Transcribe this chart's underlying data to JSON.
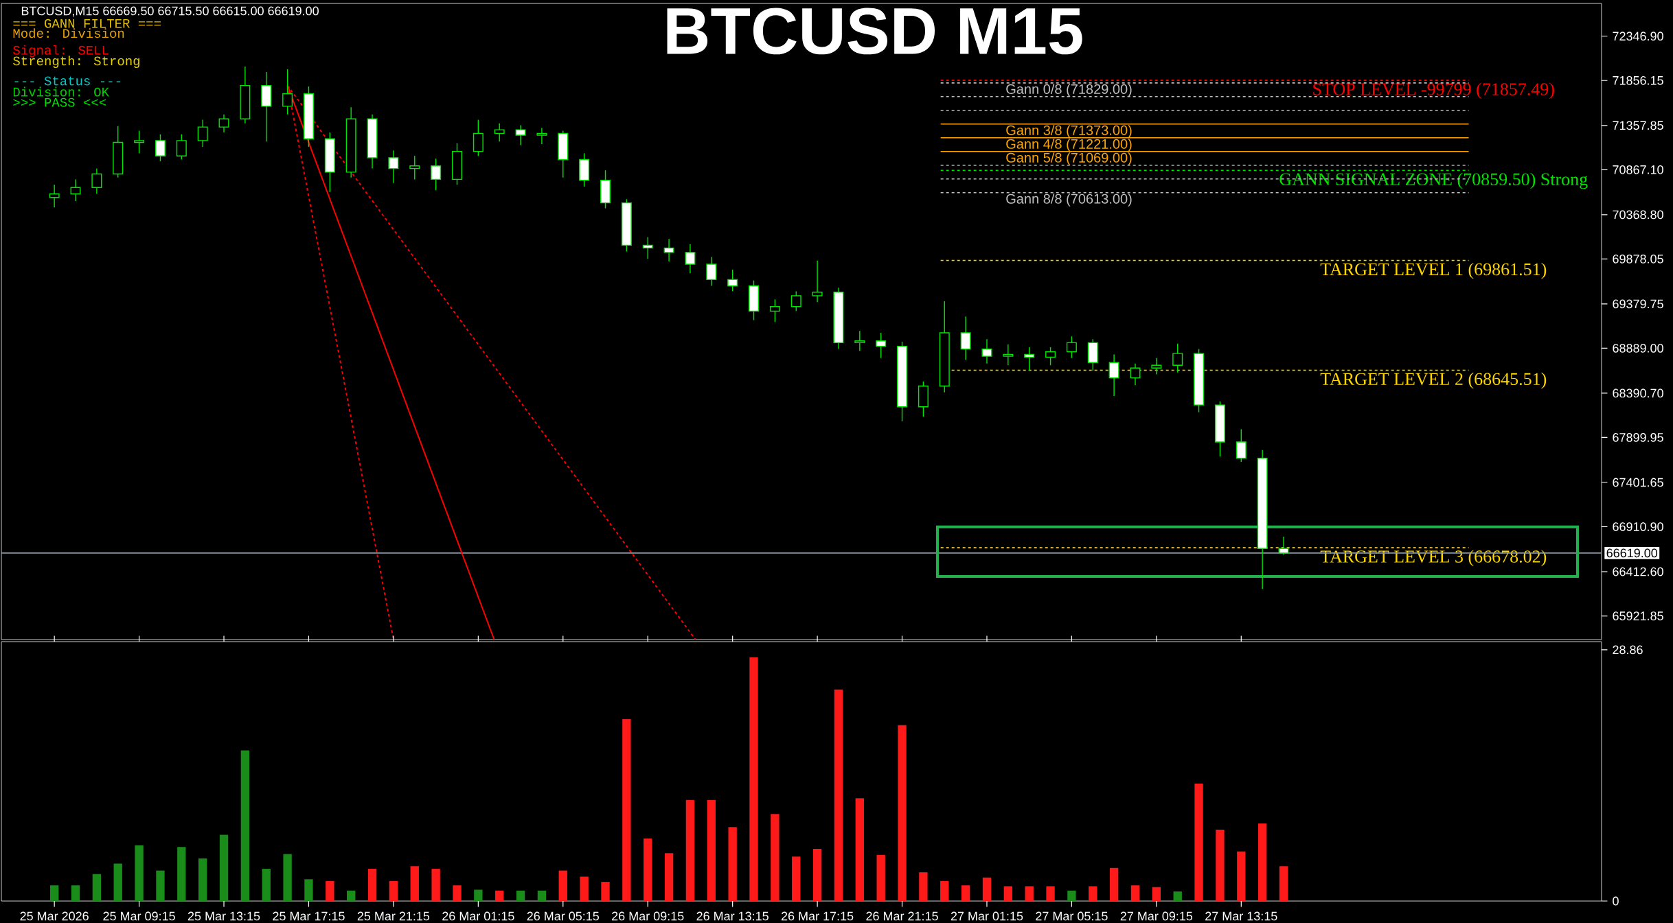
{
  "chart_data": [
    {
      "type": "candlestick",
      "title": "BTCUSD M15",
      "color": "#00e600",
      "x": [
        "2026-03-25T05:15",
        "2026-03-25T06:15",
        "2026-03-25T07:15",
        "2026-03-25T08:15",
        "2026-03-25T09:15",
        "2026-03-25T10:15",
        "2026-03-25T11:15",
        "2026-03-25T12:15",
        "2026-03-25T13:15",
        "2026-03-25T14:15",
        "2026-03-25T15:15",
        "2026-03-25T16:15",
        "2026-03-25T17:15",
        "2026-03-25T18:15",
        "2026-03-25T19:15",
        "2026-03-25T20:15",
        "2026-03-25T21:15",
        "2026-03-25T22:15",
        "2026-03-25T23:15",
        "2026-03-26T00:15",
        "2026-03-26T01:15",
        "2026-03-26T02:15",
        "2026-03-26T03:15",
        "2026-03-26T04:15",
        "2026-03-26T05:15",
        "2026-03-26T06:15",
        "2026-03-26T07:15",
        "2026-03-26T08:15",
        "2026-03-26T09:15",
        "2026-03-26T10:15",
        "2026-03-26T11:15",
        "2026-03-26T12:15",
        "2026-03-26T13:15",
        "2026-03-26T14:15",
        "2026-03-26T15:15",
        "2026-03-26T16:15",
        "2026-03-26T17:15",
        "2026-03-26T18:15",
        "2026-03-26T19:15",
        "2026-03-26T20:15",
        "2026-03-26T21:15",
        "2026-03-26T22:15",
        "2026-03-26T23:15",
        "2026-03-27T00:15",
        "2026-03-27T01:15",
        "2026-03-27T02:15",
        "2026-03-27T03:15",
        "2026-03-27T04:15",
        "2026-03-27T05:15",
        "2026-03-27T06:15",
        "2026-03-27T07:15",
        "2026-03-27T08:15",
        "2026-03-27T09:15",
        "2026-03-27T10:15",
        "2026-03-27T11:15",
        "2026-03-27T12:15",
        "2026-03-27T13:15",
        "2026-03-27T14:15",
        "2026-03-27T15:15"
      ],
      "ohlc": [
        [
          70560,
          70700,
          70450,
          70600
        ],
        [
          70600,
          70760,
          70520,
          70670
        ],
        [
          70670,
          70880,
          70600,
          70820
        ],
        [
          70820,
          71350,
          70780,
          71170
        ],
        [
          71170,
          71300,
          71050,
          71190
        ],
        [
          71190,
          71260,
          70960,
          71020
        ],
        [
          71020,
          71260,
          70980,
          71190
        ],
        [
          71190,
          71420,
          71120,
          71340
        ],
        [
          71340,
          71480,
          71280,
          71430
        ],
        [
          71430,
          72010,
          71380,
          71800
        ],
        [
          71800,
          71950,
          71180,
          71570
        ],
        [
          71570,
          71980,
          71480,
          71710
        ],
        [
          71710,
          71790,
          71120,
          71210
        ],
        [
          71210,
          71280,
          70620,
          70840
        ],
        [
          70840,
          71560,
          70780,
          71430
        ],
        [
          71430,
          71480,
          70880,
          71000
        ],
        [
          71000,
          71080,
          70720,
          70880
        ],
        [
          70880,
          71020,
          70760,
          70910
        ],
        [
          70910,
          70990,
          70640,
          70760
        ],
        [
          70760,
          71160,
          70700,
          71070
        ],
        [
          71070,
          71420,
          71020,
          71270
        ],
        [
          71270,
          71380,
          71180,
          71310
        ],
        [
          71310,
          71360,
          71140,
          71250
        ],
        [
          71250,
          71330,
          71150,
          71270
        ],
        [
          71270,
          71300,
          70780,
          70980
        ],
        [
          70980,
          71050,
          70680,
          70750
        ],
        [
          70750,
          70860,
          70440,
          70500
        ],
        [
          70500,
          70540,
          69960,
          70030
        ],
        [
          70030,
          70120,
          69880,
          70000
        ],
        [
          70000,
          70100,
          69850,
          69950
        ],
        [
          69950,
          70040,
          69720,
          69820
        ],
        [
          69820,
          69900,
          69580,
          69650
        ],
        [
          69650,
          69760,
          69520,
          69580
        ],
        [
          69580,
          69640,
          69200,
          69300
        ],
        [
          69300,
          69430,
          69180,
          69350
        ],
        [
          69350,
          69520,
          69300,
          69470
        ],
        [
          69470,
          69860,
          69400,
          69510
        ],
        [
          69510,
          69560,
          68880,
          68950
        ],
        [
          68950,
          69080,
          68860,
          68970
        ],
        [
          68970,
          69060,
          68780,
          68910
        ],
        [
          68910,
          68960,
          68080,
          68240
        ],
        [
          68240,
          68520,
          68130,
          68470
        ],
        [
          68470,
          69410,
          68400,
          69060
        ],
        [
          69060,
          69240,
          68760,
          68880
        ],
        [
          68880,
          68990,
          68720,
          68800
        ],
        [
          68800,
          68930,
          68700,
          68820
        ],
        [
          68820,
          68900,
          68640,
          68790
        ],
        [
          68790,
          68900,
          68700,
          68850
        ],
        [
          68850,
          69020,
          68780,
          68950
        ],
        [
          68950,
          68990,
          68640,
          68730
        ],
        [
          68730,
          68820,
          68360,
          68560
        ],
        [
          68560,
          68720,
          68480,
          68670
        ],
        [
          68670,
          68780,
          68600,
          68700
        ],
        [
          68700,
          68940,
          68620,
          68830
        ],
        [
          68830,
          68880,
          68180,
          68260
        ],
        [
          68260,
          68300,
          67690,
          67850
        ],
        [
          67850,
          67990,
          67630,
          67670
        ],
        [
          67670,
          67760,
          66220,
          66670
        ],
        [
          66670,
          66800,
          66600,
          66619
        ]
      ],
      "series": [
        {
          "type": "line",
          "color": "#ff0000",
          "line_style": "dashed",
          "x": [
            "2026-03-25T16:15",
            "2026-03-25T21:15"
          ],
          "values": [
            71800,
            65660
          ]
        },
        {
          "type": "line",
          "color": "#ff0000",
          "line_style": "solid",
          "x": [
            "2026-03-25T16:15",
            "2026-03-26T02:00"
          ],
          "values": [
            71800,
            65660
          ]
        },
        {
          "type": "line",
          "color": "#ff0000",
          "line_style": "dashed",
          "x": [
            "2026-03-25T16:15",
            "2026-03-26T11:30"
          ],
          "values": [
            71800,
            65660
          ]
        }
      ],
      "xlim": [
        "2026-03-25T02:45",
        "2026-03-28T06:15"
      ],
      "ylim": [
        65660,
        72710
      ],
      "yticks": [
        {
          "value": 72346.9,
          "label": "72346.90"
        },
        {
          "value": 71856.15,
          "label": "71856.15"
        },
        {
          "value": 71357.85,
          "label": "71357.85"
        },
        {
          "value": 70867.1,
          "label": "70867.10"
        },
        {
          "value": 70368.8,
          "label": "70368.80"
        },
        {
          "value": 69878.05,
          "label": "69878.05"
        },
        {
          "value": 69379.75,
          "label": "69379.75"
        },
        {
          "value": 68889,
          "label": "68889.00"
        },
        {
          "value": 68390.7,
          "label": "68390.70"
        },
        {
          "value": 67899.95,
          "label": "67899.95"
        },
        {
          "value": 67401.65,
          "label": "67401.65"
        },
        {
          "value": 66910.9,
          "label": "66910.90"
        },
        {
          "value": 66412.6,
          "label": "66412.60"
        },
        {
          "value": 65921.85,
          "label": "65921.85"
        }
      ],
      "tick_labels": "y",
      "ref_lines": [
        {
          "axis": "y",
          "value": 71857.49,
          "label": "STOP LEVEL -99799 (71857.49)",
          "color": "#ff0000",
          "line_style": "dashed"
        },
        {
          "axis": "y",
          "value": 71829,
          "label": "Gann 0/8 (71829.00)",
          "color": "#c0c0c0",
          "line_style": "dashed"
        },
        {
          "axis": "y",
          "value": 71677,
          "color": "#c0c0c0",
          "line_style": "dashed"
        },
        {
          "axis": "y",
          "value": 71525,
          "color": "#c0c0c0",
          "line_style": "dashed"
        },
        {
          "axis": "y",
          "value": 71373,
          "label": "Gann 3/8 (71373.00)",
          "color": "#ffa500",
          "line_style": "solid"
        },
        {
          "axis": "y",
          "value": 71221,
          "label": "Gann 4/8 (71221.00)",
          "color": "#ffa500",
          "line_style": "solid"
        },
        {
          "axis": "y",
          "value": 71069,
          "label": "Gann 5/8 (71069.00)",
          "color": "#ffa500",
          "line_style": "solid"
        },
        {
          "axis": "y",
          "value": 70917,
          "color": "#c0c0c0",
          "line_style": "dashed"
        },
        {
          "axis": "y",
          "value": 70859.5,
          "label": "GANN SIGNAL ZONE (70859.50) Strong",
          "color": "#00e600",
          "line_style": "dashed"
        },
        {
          "axis": "y",
          "value": 70765,
          "color": "#c0c0c0",
          "line_style": "dashed"
        },
        {
          "axis": "y",
          "value": 70613,
          "label": "Gann 8/8 (70613.00)",
          "color": "#c0c0c0",
          "line_style": "dashed"
        },
        {
          "axis": "y",
          "value": 69861.51,
          "label": "TARGET LEVEL 1 (69861.51)",
          "color": "#ffd700",
          "line_style": "dashed"
        },
        {
          "axis": "y",
          "value": 68645.51,
          "label": "TARGET LEVEL 2 (68645.51)",
          "color": "#ffd700",
          "line_style": "dashed"
        },
        {
          "axis": "y",
          "value": 66678.02,
          "label": "TARGET LEVEL 3 (66678.02)",
          "color": "#ffd700",
          "line_style": "dashed"
        },
        {
          "axis": "y",
          "value": 66619,
          "label": "66619.00",
          "color": "#8a9bb0",
          "line_style": "solid"
        }
      ],
      "annotations": [
        "BTCUSD,M15  66669.50 66715.50 66615.00 66619.00",
        "=== GANN FILTER ===",
        "Mode: Division",
        "Signal: SELL",
        "Strength: Strong",
        "--- Status ---",
        "Division: OK",
        ">>> PASS <<<"
      ]
    },
    {
      "type": "bar",
      "x": [
        "2026-03-25T05:15",
        "2026-03-25T06:15",
        "2026-03-25T07:15",
        "2026-03-25T08:15",
        "2026-03-25T09:15",
        "2026-03-25T10:15",
        "2026-03-25T11:15",
        "2026-03-25T12:15",
        "2026-03-25T13:15",
        "2026-03-25T14:15",
        "2026-03-25T15:15",
        "2026-03-25T16:15",
        "2026-03-25T17:15",
        "2026-03-25T18:15",
        "2026-03-25T19:15",
        "2026-03-25T20:15",
        "2026-03-25T21:15",
        "2026-03-25T22:15",
        "2026-03-25T23:15",
        "2026-03-26T00:15",
        "2026-03-26T01:15",
        "2026-03-26T02:15",
        "2026-03-26T03:15",
        "2026-03-26T04:15",
        "2026-03-26T05:15",
        "2026-03-26T06:15",
        "2026-03-26T07:15",
        "2026-03-26T08:15",
        "2026-03-26T09:15",
        "2026-03-26T10:15",
        "2026-03-26T11:15",
        "2026-03-26T12:15",
        "2026-03-26T13:15",
        "2026-03-26T14:15",
        "2026-03-26T15:15",
        "2026-03-26T16:15",
        "2026-03-26T17:15",
        "2026-03-26T18:15",
        "2026-03-26T19:15",
        "2026-03-26T20:15",
        "2026-03-26T21:15",
        "2026-03-26T22:15",
        "2026-03-26T23:15",
        "2026-03-27T00:15",
        "2026-03-27T01:15",
        "2026-03-27T02:15",
        "2026-03-27T03:15",
        "2026-03-27T04:15",
        "2026-03-27T05:15",
        "2026-03-27T06:15",
        "2026-03-27T07:15",
        "2026-03-27T08:15",
        "2026-03-27T09:15",
        "2026-03-27T10:15",
        "2026-03-27T11:15",
        "2026-03-27T12:15",
        "2026-03-27T13:15",
        "2026-03-27T14:15",
        "2026-03-27T15:15"
      ],
      "values": [
        1.8,
        1.8,
        3.1,
        4.3,
        6.4,
        3.5,
        6.2,
        4.9,
        7.6,
        17.3,
        3.7,
        5.4,
        2.5,
        2.3,
        1.2,
        3.7,
        2.3,
        4.0,
        3.7,
        1.8,
        1.3,
        1.2,
        1.2,
        1.2,
        3.5,
        2.8,
        2.2,
        20.9,
        7.2,
        5.5,
        11.6,
        11.6,
        8.5,
        28.0,
        10.0,
        5.1,
        6.0,
        24.3,
        11.8,
        5.3,
        20.2,
        3.3,
        2.3,
        1.8,
        2.7,
        1.7,
        1.7,
        1.7,
        1.2,
        1.7,
        3.8,
        1.8,
        1.6,
        1.1,
        13.5,
        8.2,
        5.7,
        8.9,
        4.0
      ],
      "colors": [
        "#1a8c1a",
        "#1a8c1a",
        "#1a8c1a",
        "#1a8c1a",
        "#1a8c1a",
        "#1a8c1a",
        "#1a8c1a",
        "#1a8c1a",
        "#1a8c1a",
        "#1a8c1a",
        "#1a8c1a",
        "#1a8c1a",
        "#1a8c1a",
        "#ff1a1a",
        "#1a8c1a",
        "#ff1a1a",
        "#ff1a1a",
        "#ff1a1a",
        "#ff1a1a",
        "#ff1a1a",
        "#1a8c1a",
        "#ff1a1a",
        "#1a8c1a",
        "#1a8c1a",
        "#ff1a1a",
        "#ff1a1a",
        "#ff1a1a",
        "#ff1a1a",
        "#ff1a1a",
        "#ff1a1a",
        "#ff1a1a",
        "#ff1a1a",
        "#ff1a1a",
        "#ff1a1a",
        "#ff1a1a",
        "#ff1a1a",
        "#ff1a1a",
        "#ff1a1a",
        "#ff1a1a",
        "#ff1a1a",
        "#ff1a1a",
        "#ff1a1a",
        "#ff1a1a",
        "#ff1a1a",
        "#ff1a1a",
        "#ff1a1a",
        "#ff1a1a",
        "#ff1a1a",
        "#1a8c1a",
        "#ff1a1a",
        "#ff1a1a",
        "#ff1a1a",
        "#ff1a1a",
        "#1a8c1a",
        "#ff1a1a",
        "#ff1a1a",
        "#ff1a1a",
        "#ff1a1a",
        "#ff1a1a"
      ],
      "xlim": [
        "2026-03-25T02:45",
        "2026-03-28T06:15"
      ],
      "ylim": [
        0,
        29.8
      ],
      "xticks": [
        {
          "value": "2026-03-25T05:15",
          "label": "25 Mar 2026"
        },
        {
          "value": "2026-03-25T09:15",
          "label": "25 Mar 09:15"
        },
        {
          "value": "2026-03-25T13:15",
          "label": "25 Mar 13:15"
        },
        {
          "value": "2026-03-25T17:15",
          "label": "25 Mar 17:15"
        },
        {
          "value": "2026-03-25T21:15",
          "label": "25 Mar 21:15"
        },
        {
          "value": "2026-03-26T01:15",
          "label": "26 Mar 01:15"
        },
        {
          "value": "2026-03-26T05:15",
          "label": "26 Mar 05:15"
        },
        {
          "value": "2026-03-26T09:15",
          "label": "26 Mar 09:15"
        },
        {
          "value": "2026-03-26T13:15",
          "label": "26 Mar 13:15"
        },
        {
          "value": "2026-03-26T17:15",
          "label": "26 Mar 17:15"
        },
        {
          "value": "2026-03-26T21:15",
          "label": "26 Mar 21:15"
        },
        {
          "value": "2026-03-27T01:15",
          "label": "27 Mar 01:15"
        },
        {
          "value": "2026-03-27T05:15",
          "label": "27 Mar 05:15"
        },
        {
          "value": "2026-03-27T09:15",
          "label": "27 Mar 09:15"
        },
        {
          "value": "2026-03-27T13:15",
          "label": "27 Mar 13:15"
        }
      ],
      "yticks": [
        28.86,
        0
      ]
    }
  ]
}
